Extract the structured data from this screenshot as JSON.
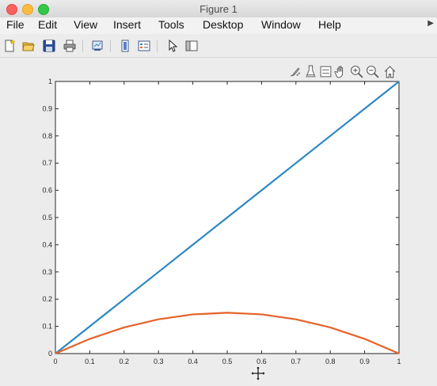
{
  "window": {
    "title": "Figure 1"
  },
  "menubar": {
    "items": [
      "File",
      "Edit",
      "View",
      "Insert",
      "Tools",
      "Desktop",
      "Window",
      "Help"
    ]
  },
  "toolbar": {
    "buttons": [
      "new-figure-icon",
      "open-file-icon",
      "save-icon",
      "print-icon",
      "link-plot-icon",
      "insert-colorbar-icon",
      "insert-legend-icon",
      "edit-plot-icon",
      "show-plot-tools-icon"
    ]
  },
  "axes_toolbar": {
    "buttons": [
      "brush-icon",
      "data-tips-icon",
      "linked-plots-icon",
      "pan-icon",
      "zoom-in-icon",
      "zoom-out-icon",
      "home-icon"
    ]
  },
  "colors": {
    "line1": "#2b87c4",
    "line2": "#e5622a",
    "axis": "#262626"
  },
  "chart_data": {
    "type": "line",
    "xlim": [
      0,
      1
    ],
    "ylim": [
      0,
      1
    ],
    "x_ticks": [
      "0",
      "0.1",
      "0.2",
      "0.3",
      "0.4",
      "0.5",
      "0.6",
      "0.7",
      "0.8",
      "0.9",
      "1"
    ],
    "y_ticks": [
      "0",
      "0.1",
      "0.2",
      "0.3",
      "0.4",
      "0.5",
      "0.6",
      "0.7",
      "0.8",
      "0.9",
      "1"
    ],
    "grid": false,
    "series": [
      {
        "color": "#2b87c4",
        "x": [
          0,
          0.1,
          0.2,
          0.3,
          0.4,
          0.5,
          0.6,
          0.7,
          0.8,
          0.9,
          1
        ],
        "y": [
          0,
          0.1,
          0.2,
          0.3,
          0.4,
          0.5,
          0.6,
          0.7,
          0.8,
          0.9,
          1
        ]
      },
      {
        "color": "#e5622a",
        "x": [
          0,
          0.1,
          0.2,
          0.3,
          0.4,
          0.5,
          0.6,
          0.7,
          0.8,
          0.9,
          1
        ],
        "y": [
          0,
          0.054,
          0.096,
          0.126,
          0.144,
          0.15,
          0.144,
          0.126,
          0.096,
          0.054,
          0
        ]
      }
    ]
  }
}
